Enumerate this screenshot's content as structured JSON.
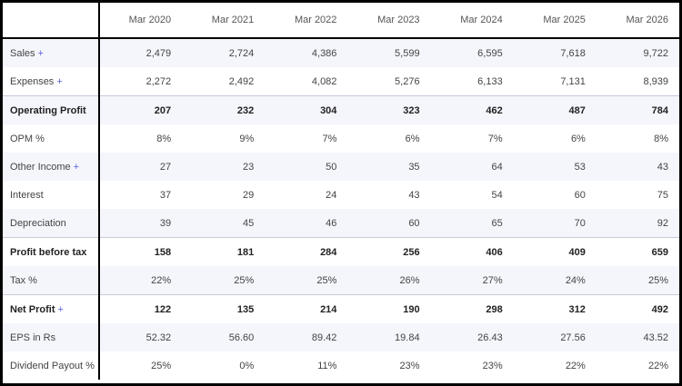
{
  "columns": [
    "Mar 2020",
    "Mar 2021",
    "Mar 2022",
    "Mar 2023",
    "Mar 2024",
    "Mar 2025",
    "Mar 2026"
  ],
  "rows": [
    {
      "label": "Sales",
      "expandable": true,
      "bold": false,
      "alt": true,
      "values": [
        "2,479",
        "2,724",
        "4,386",
        "5,599",
        "6,595",
        "7,618",
        "9,722"
      ]
    },
    {
      "label": "Expenses",
      "expandable": true,
      "bold": false,
      "alt": false,
      "values": [
        "2,272",
        "2,492",
        "4,082",
        "5,276",
        "6,133",
        "7,131",
        "8,939"
      ]
    },
    {
      "label": "Operating Profit",
      "expandable": false,
      "bold": true,
      "alt": true,
      "values": [
        "207",
        "232",
        "304",
        "323",
        "462",
        "487",
        "784"
      ]
    },
    {
      "label": "OPM %",
      "expandable": false,
      "bold": false,
      "alt": false,
      "values": [
        "8%",
        "9%",
        "7%",
        "6%",
        "7%",
        "6%",
        "8%"
      ]
    },
    {
      "label": "Other Income",
      "expandable": true,
      "bold": false,
      "alt": true,
      "values": [
        "27",
        "23",
        "50",
        "35",
        "64",
        "53",
        "43"
      ]
    },
    {
      "label": "Interest",
      "expandable": false,
      "bold": false,
      "alt": false,
      "values": [
        "37",
        "29",
        "24",
        "43",
        "54",
        "60",
        "75"
      ]
    },
    {
      "label": "Depreciation",
      "expandable": false,
      "bold": false,
      "alt": true,
      "values": [
        "39",
        "45",
        "46",
        "60",
        "65",
        "70",
        "92"
      ]
    },
    {
      "label": "Profit before tax",
      "expandable": false,
      "bold": true,
      "alt": false,
      "values": [
        "158",
        "181",
        "284",
        "256",
        "406",
        "409",
        "659"
      ]
    },
    {
      "label": "Tax %",
      "expandable": false,
      "bold": false,
      "alt": true,
      "values": [
        "22%",
        "25%",
        "25%",
        "26%",
        "27%",
        "24%",
        "25%"
      ]
    },
    {
      "label": "Net Profit",
      "expandable": true,
      "bold": true,
      "alt": false,
      "values": [
        "122",
        "135",
        "214",
        "190",
        "298",
        "312",
        "492"
      ]
    },
    {
      "label": "EPS in Rs",
      "expandable": false,
      "bold": false,
      "alt": true,
      "values": [
        "52.32",
        "56.60",
        "89.42",
        "19.84",
        "26.43",
        "27.56",
        "43.52"
      ]
    },
    {
      "label": "Dividend Payout %",
      "expandable": false,
      "bold": false,
      "alt": false,
      "values": [
        "25%",
        "0%",
        "11%",
        "23%",
        "23%",
        "22%",
        "22%"
      ]
    }
  ],
  "plus_symbol": "+"
}
